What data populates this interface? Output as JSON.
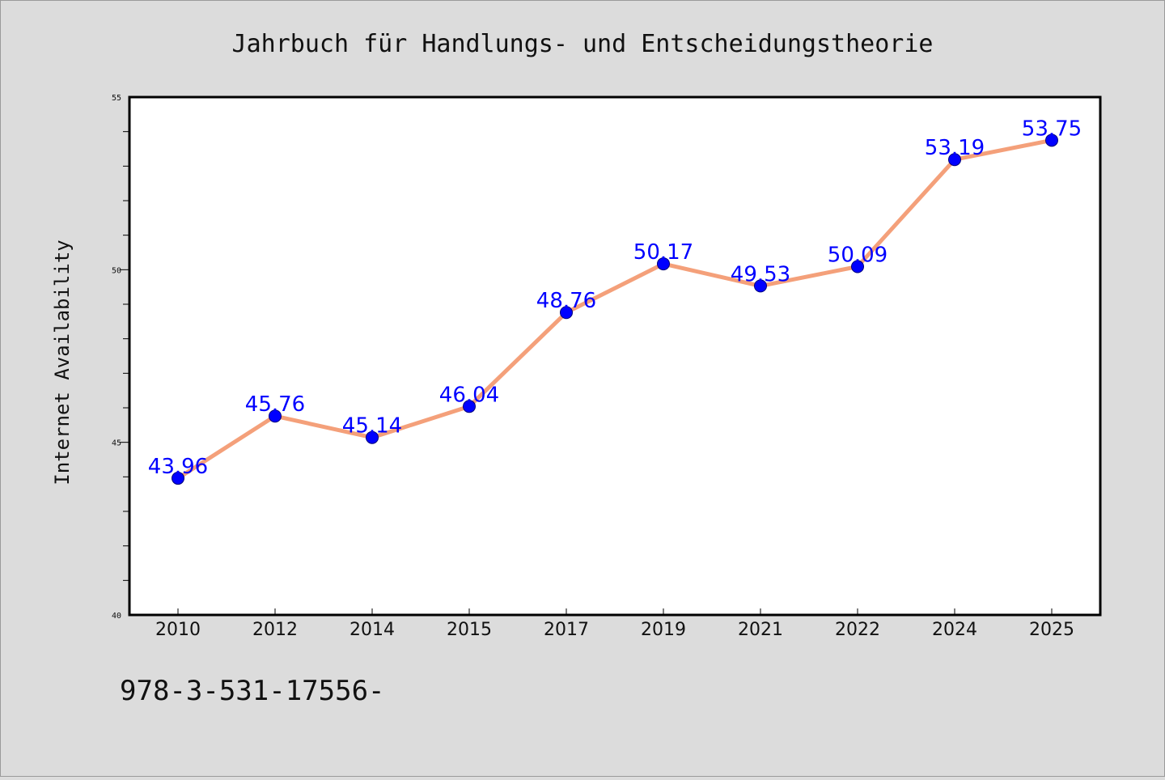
{
  "chart_data": {
    "type": "line",
    "title": "Jahrbuch für Handlungs- und Entscheidungstheorie",
    "xlabel": "",
    "ylabel": "Internet Availability",
    "categories": [
      "2010",
      "2012",
      "2014",
      "2015",
      "2017",
      "2019",
      "2021",
      "2022",
      "2024",
      "2025"
    ],
    "values": [
      43.96,
      45.76,
      45.14,
      46.04,
      48.76,
      50.17,
      49.53,
      50.09,
      53.19,
      53.75
    ],
    "data_labels": [
      "43.96",
      "45.76",
      "45.14",
      "46.04",
      "48.76",
      "50.17",
      "49.53",
      "50.09",
      "53.19",
      "53.75"
    ],
    "ylim": [
      40,
      55
    ],
    "yticks": [
      "40",
      "45",
      "50",
      "55"
    ],
    "grid": false,
    "line_color": "#f4a07a",
    "marker_color": "#0000ff",
    "label_color": "#0000ff"
  },
  "footer_text": "978-3-531-17556-"
}
